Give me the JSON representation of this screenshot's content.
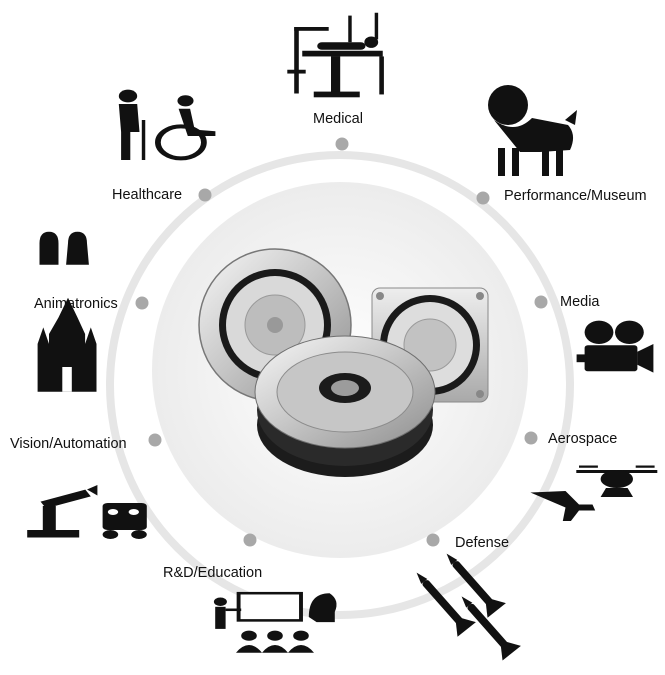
{
  "diagram": {
    "colors": {
      "ring": "#e6e6e6",
      "dot": "#a8a8a8",
      "icon": "#111111",
      "hub": "#f3f3f3"
    },
    "center_icon": "harmonic-drive-gear-units",
    "applications": [
      {
        "key": "medical",
        "label": "Medical",
        "icon": "surgical-robot-icon"
      },
      {
        "key": "performance",
        "label": "Performance/Museum",
        "icon": "lion-dance-icon"
      },
      {
        "key": "media",
        "label": "Media",
        "icon": "movie-camera-icon"
      },
      {
        "key": "aerospace",
        "label": "Aerospace",
        "icon": "drone-and-airplane-icon"
      },
      {
        "key": "defense",
        "label": "Defense",
        "icon": "missiles-icon"
      },
      {
        "key": "education",
        "label": "R&D/Education",
        "icon": "classroom-icon"
      },
      {
        "key": "vision",
        "label": "Vision/Automation",
        "icon": "robot-arm-icon"
      },
      {
        "key": "animatronics",
        "label": "Animatronics",
        "icon": "castle-and-helmets-icon"
      },
      {
        "key": "healthcare",
        "label": "Healthcare",
        "icon": "elderly-and-wheelchair-icon"
      }
    ]
  }
}
